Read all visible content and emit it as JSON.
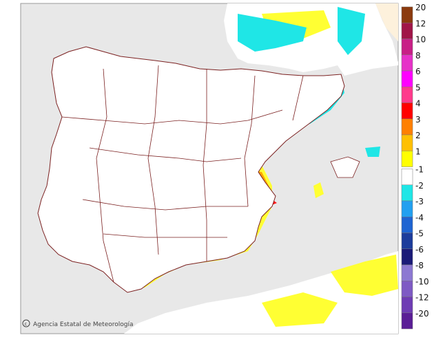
{
  "credit": {
    "icon": "copyright-icon",
    "text": "Agencia Estatal de Meteorología",
    "brand": "aemet"
  },
  "legend": [
    {
      "label": "20",
      "color": "#8b3a0e"
    },
    {
      "label": "12",
      "color": "#a01548"
    },
    {
      "label": "10",
      "color": "#c81f86"
    },
    {
      "label": "8",
      "color": "#e632c8"
    },
    {
      "label": "6",
      "color": "#ff00ff"
    },
    {
      "label": "5",
      "color": "#ff3a8c"
    },
    {
      "label": "4",
      "color": "#ff0000"
    },
    {
      "label": "3",
      "color": "#ff8000"
    },
    {
      "label": "2",
      "color": "#ffc000"
    },
    {
      "label": "1",
      "color": "#ffff00"
    },
    {
      "label": "-1",
      "color": "#ffffff"
    },
    {
      "label": "-2",
      "color": "#1fe6e6"
    },
    {
      "label": "-3",
      "color": "#22a0f0"
    },
    {
      "label": "-4",
      "color": "#1e64d2"
    },
    {
      "label": "-5",
      "color": "#1c3c9c"
    },
    {
      "label": "-6",
      "color": "#1a1a78"
    },
    {
      "label": "-8",
      "color": "#8c78d2"
    },
    {
      "label": "-10",
      "color": "#7e5ac4"
    },
    {
      "label": "-12",
      "color": "#6e3cb4"
    },
    {
      "label": "-20",
      "color": "#5a1e96"
    }
  ],
  "colors": {
    "sea": "#e8e8e8",
    "land": "#ffffff",
    "border": "#7a1f1f"
  }
}
